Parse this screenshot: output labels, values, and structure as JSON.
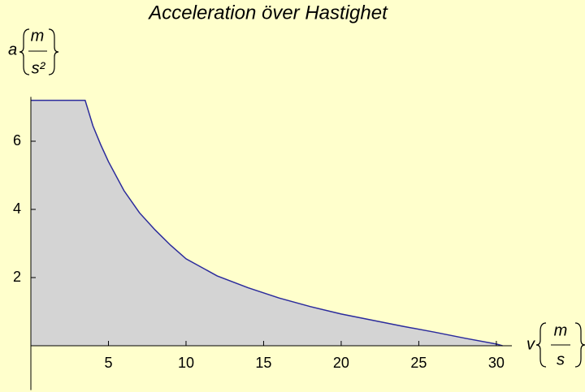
{
  "chart_data": {
    "type": "area",
    "title": "Acceleration över Hastighet",
    "x_label": "v",
    "x_unit_num": "m",
    "x_unit_den": "s",
    "y_label": "a",
    "y_unit_num": "m",
    "y_unit_den": "s²",
    "x": [
      0,
      3.5,
      4,
      4.5,
      5,
      6,
      7,
      8,
      9,
      10,
      12,
      14,
      16,
      18,
      20,
      22,
      24,
      26,
      28,
      30,
      30.4
    ],
    "series": [
      {
        "color": "#2b2b9c",
        "fill": "#d4d4d4",
        "values": [
          7.2,
          7.2,
          6.45,
          5.9,
          5.4,
          4.55,
          3.9,
          3.4,
          2.95,
          2.55,
          2.05,
          1.7,
          1.4,
          1.15,
          0.93,
          0.75,
          0.57,
          0.4,
          0.22,
          0.05,
          0
        ]
      }
    ],
    "xlim": [
      0,
      31
    ],
    "ylim": [
      -1.3,
      7.3
    ],
    "xticks": [
      5,
      10,
      15,
      20,
      25,
      30
    ],
    "yticks": [
      2,
      4,
      6
    ]
  }
}
